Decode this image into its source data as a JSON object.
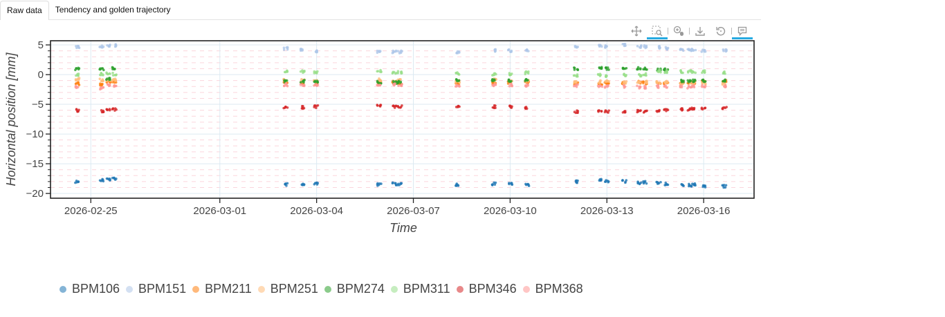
{
  "tabs": [
    {
      "label": "Raw data",
      "active": true
    },
    {
      "label": "Tendency and golden trajectory",
      "active": false
    }
  ],
  "toolbar": [
    {
      "name": "pan-tool",
      "active": false
    },
    {
      "name": "box-zoom-tool",
      "active": true
    },
    {
      "name": "wheel-zoom-tool",
      "active": false
    },
    {
      "name": "save-tool",
      "active": false
    },
    {
      "name": "reset-tool",
      "active": false
    },
    {
      "name": "hover-tool",
      "active": true
    }
  ],
  "chart_data": {
    "type": "scatter",
    "xlabel": "Time",
    "ylabel": "Horizontal position [mm]",
    "ylim": [
      -20.8,
      5.7
    ],
    "xlim": [
      "2026-02-23T18:00",
      "2026-03-17T13:30"
    ],
    "yticks": [
      5,
      0,
      -5,
      -10,
      -15,
      -20
    ],
    "ytick_labels": [
      "5",
      "0",
      "−5",
      "−10",
      "−15",
      "−20"
    ],
    "xticks": [
      "2026-02-25",
      "2026-03-01",
      "2026-03-04",
      "2026-03-07",
      "2026-03-10",
      "2026-03-13",
      "2026-03-16"
    ],
    "grid": true,
    "legend_position": "bottom-left",
    "x": [
      "2026-02-24T14:00",
      "2026-02-25T08:00",
      "2026-02-25T13:00",
      "2026-02-25T17:30",
      "2026-03-03T01:00",
      "2026-03-03T13:30",
      "2026-03-03T23:30",
      "2026-03-05T22:30",
      "2026-03-06T10:00",
      "2026-03-06T14:00",
      "2026-03-08T09:00",
      "2026-03-09T12:00",
      "2026-03-10T00:00",
      "2026-03-10T12:30",
      "2026-03-12T01:00",
      "2026-03-12T19:00",
      "2026-03-13T00:00",
      "2026-03-13T13:00",
      "2026-03-14T00:00",
      "2026-03-14T04:30",
      "2026-03-14T14:30",
      "2026-03-14T20:00",
      "2026-03-15T08:00",
      "2026-03-15T13:30",
      "2026-03-15T16:30",
      "2026-03-16T00:00",
      "2026-03-16T15:30"
    ],
    "series": [
      {
        "name": "BPM106",
        "color": "#1f77b4",
        "values": [
          -18,
          -17.8,
          -17.6,
          -17.5,
          -18.5,
          -18.5,
          -18.3,
          -18.5,
          -18.4,
          -18.4,
          -18.5,
          -18.4,
          -18.3,
          -18.5,
          -18.0,
          -17.8,
          -17.9,
          -18.0,
          -18.2,
          -18.1,
          -18.3,
          -18.4,
          -18.5,
          -18.6,
          -18.5,
          -18.8,
          -18.8
        ]
      },
      {
        "name": "BPM151",
        "color": "#aec7e8",
        "values": [
          4.6,
          4.7,
          4.8,
          4.9,
          4.4,
          4.1,
          4.0,
          3.8,
          3.8,
          3.8,
          3.8,
          4.1,
          4.0,
          4.1,
          4.7,
          4.8,
          4.7,
          5.0,
          4.7,
          4.7,
          4.6,
          4.4,
          4.2,
          4.2,
          4.2,
          4.0,
          4.0
        ]
      },
      {
        "name": "BPM211",
        "color": "#ff7f0e",
        "values": [
          -1.5,
          -1.6,
          -1.3,
          -1.2,
          -1.3,
          -1.4,
          -1.5,
          -1.2,
          -1.3,
          -1.4,
          -1.5,
          -1.4,
          -1.3,
          -1.4,
          -1.5,
          -1.6,
          -1.4,
          -1.5,
          -1.3,
          -1.4,
          -1.4,
          -1.5,
          -1.3,
          -1.4,
          -1.3,
          -1.2,
          -1.1
        ]
      },
      {
        "name": "BPM251",
        "color": "#ffbb78",
        "values": [
          -0.8,
          -0.9,
          -0.9,
          -0.9,
          -0.9,
          -1.0,
          -1.0,
          -0.9,
          -1.0,
          -1.0,
          -1.1,
          -0.9,
          -1.0,
          -1.1,
          -1.2,
          -1.2,
          -1.2,
          -1.3,
          -1.2,
          -1.2,
          -1.3,
          -1.3,
          -1.4,
          -1.3,
          -1.3,
          -1.4,
          -1.5
        ]
      },
      {
        "name": "BPM274",
        "color": "#2ca02c",
        "values": [
          1.0,
          1.0,
          -0.8,
          1.1,
          -1.1,
          -1.1,
          -1.1,
          -1.3,
          -1.3,
          -1.3,
          -1.0,
          -1.0,
          -1.0,
          -0.9,
          1.0,
          1.1,
          1.0,
          1.0,
          1.0,
          1.0,
          0.9,
          0.8,
          -1.1,
          -1.1,
          -1.0,
          -1.0,
          -1.0
        ]
      },
      {
        "name": "BPM311",
        "color": "#98df8a",
        "values": [
          0.0,
          0.1,
          0.2,
          0.1,
          0.5,
          0.5,
          0.3,
          0.6,
          0.4,
          0.4,
          0.2,
          0.0,
          0.1,
          0.3,
          -0.1,
          -0.1,
          -0.2,
          -0.1,
          -0.1,
          0.0,
          0.6,
          0.5,
          0.5,
          0.5,
          0.5,
          0.5,
          0.3
        ]
      },
      {
        "name": "BPM346",
        "color": "#d62728",
        "values": [
          -6.0,
          -6.2,
          -6.0,
          -5.9,
          -5.6,
          -5.5,
          -5.4,
          -5.3,
          -5.4,
          -5.4,
          -5.3,
          -5.4,
          -5.4,
          -5.6,
          -6.2,
          -6.2,
          -6.2,
          -6.3,
          -6.2,
          -6.2,
          -6.1,
          -6.0,
          -5.8,
          -5.8,
          -5.8,
          -5.7,
          -5.6
        ]
      },
      {
        "name": "BPM368",
        "color": "#ff9896",
        "values": [
          -2.0,
          -2.3,
          -1.8,
          -1.8,
          -1.7,
          -1.7,
          -1.8,
          -1.6,
          -1.7,
          -1.8,
          -1.8,
          -1.7,
          -1.8,
          -1.8,
          -1.9,
          -2.0,
          -2.0,
          -2.0,
          -2.1,
          -2.1,
          -2.0,
          -2.0,
          -2.0,
          -2.1,
          -2.0,
          -2.0,
          -2.0
        ]
      }
    ]
  }
}
